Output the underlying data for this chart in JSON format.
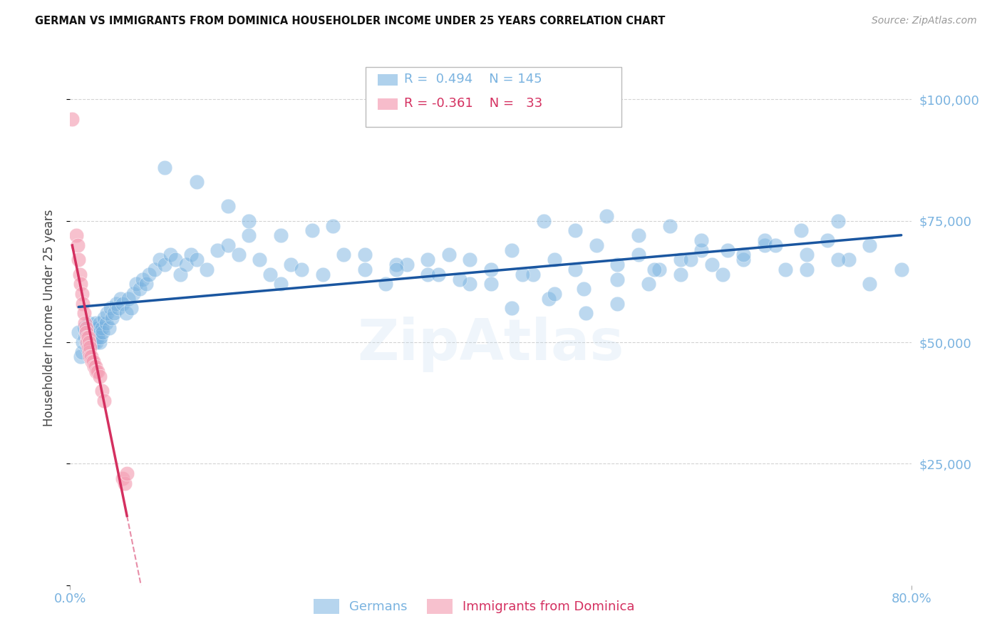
{
  "title": "GERMAN VS IMMIGRANTS FROM DOMINICA HOUSEHOLDER INCOME UNDER 25 YEARS CORRELATION CHART",
  "source": "Source: ZipAtlas.com",
  "ylabel": "Householder Income Under 25 years",
  "xlim": [
    0.0,
    0.8
  ],
  "ylim": [
    0,
    110000
  ],
  "yticks": [
    0,
    25000,
    50000,
    75000,
    100000
  ],
  "background_color": "#ffffff",
  "grid_color": "#c8c8c8",
  "blue_color": "#7ab3e0",
  "pink_color": "#f4a0b5",
  "line_blue": "#1a56a0",
  "line_pink": "#d43060",
  "legend_R_blue": "0.494",
  "legend_N_blue": "145",
  "legend_R_pink": "-0.361",
  "legend_N_pink": "33",
  "german_x": [
    0.008,
    0.01,
    0.011,
    0.012,
    0.013,
    0.014,
    0.015,
    0.015,
    0.016,
    0.017,
    0.017,
    0.018,
    0.018,
    0.019,
    0.019,
    0.02,
    0.02,
    0.021,
    0.021,
    0.022,
    0.022,
    0.023,
    0.023,
    0.024,
    0.024,
    0.025,
    0.025,
    0.026,
    0.026,
    0.027,
    0.028,
    0.028,
    0.029,
    0.03,
    0.031,
    0.032,
    0.034,
    0.035,
    0.037,
    0.038,
    0.04,
    0.042,
    0.044,
    0.046,
    0.048,
    0.05,
    0.053,
    0.055,
    0.058,
    0.06,
    0.063,
    0.066,
    0.069,
    0.072,
    0.075,
    0.08,
    0.085,
    0.09,
    0.095,
    0.1,
    0.105,
    0.11,
    0.115,
    0.12,
    0.13,
    0.14,
    0.15,
    0.16,
    0.17,
    0.18,
    0.19,
    0.2,
    0.21,
    0.22,
    0.24,
    0.26,
    0.28,
    0.3,
    0.32,
    0.34,
    0.36,
    0.38,
    0.4,
    0.42,
    0.44,
    0.46,
    0.48,
    0.5,
    0.52,
    0.54,
    0.56,
    0.58,
    0.6,
    0.62,
    0.64,
    0.66,
    0.68,
    0.7,
    0.72,
    0.74,
    0.76,
    0.45,
    0.48,
    0.51,
    0.54,
    0.57,
    0.6,
    0.28,
    0.31,
    0.35,
    0.38,
    0.42,
    0.455,
    0.488,
    0.52,
    0.555,
    0.59,
    0.625,
    0.66,
    0.695,
    0.73,
    0.09,
    0.12,
    0.15,
    0.17,
    0.2,
    0.23,
    0.25,
    0.31,
    0.34,
    0.37,
    0.4,
    0.43,
    0.46,
    0.49,
    0.52,
    0.55,
    0.58,
    0.61,
    0.64,
    0.67,
    0.7,
    0.73,
    0.76,
    0.79
  ],
  "german_y": [
    52000,
    47000,
    48000,
    50000,
    53000,
    51000,
    52000,
    50000,
    49000,
    52000,
    53000,
    51000,
    54000,
    50000,
    52000,
    51000,
    53000,
    52000,
    50000,
    51000,
    53000,
    52000,
    50000,
    54000,
    51000,
    52000,
    50000,
    53000,
    51000,
    52000,
    54000,
    50000,
    51000,
    53000,
    52000,
    55000,
    54000,
    56000,
    53000,
    57000,
    55000,
    56000,
    58000,
    57000,
    59000,
    58000,
    56000,
    59000,
    57000,
    60000,
    62000,
    61000,
    63000,
    62000,
    64000,
    65000,
    67000,
    66000,
    68000,
    67000,
    64000,
    66000,
    68000,
    67000,
    65000,
    69000,
    70000,
    68000,
    72000,
    67000,
    64000,
    62000,
    66000,
    65000,
    64000,
    68000,
    65000,
    62000,
    66000,
    64000,
    68000,
    67000,
    65000,
    69000,
    64000,
    67000,
    65000,
    70000,
    66000,
    68000,
    65000,
    67000,
    69000,
    64000,
    67000,
    70000,
    65000,
    68000,
    71000,
    67000,
    70000,
    75000,
    73000,
    76000,
    72000,
    74000,
    71000,
    68000,
    66000,
    64000,
    62000,
    57000,
    59000,
    61000,
    63000,
    65000,
    67000,
    69000,
    71000,
    73000,
    75000,
    86000,
    83000,
    78000,
    75000,
    72000,
    73000,
    74000,
    65000,
    67000,
    63000,
    62000,
    64000,
    60000,
    56000,
    58000,
    62000,
    64000,
    66000,
    68000,
    70000,
    65000,
    67000,
    62000,
    65000
  ],
  "dominica_x": [
    0.002,
    0.006,
    0.007,
    0.008,
    0.009,
    0.01,
    0.011,
    0.012,
    0.013,
    0.014,
    0.015,
    0.015,
    0.016,
    0.016,
    0.017,
    0.017,
    0.018,
    0.018,
    0.019,
    0.019,
    0.02,
    0.021,
    0.022,
    0.023,
    0.024,
    0.025,
    0.026,
    0.028,
    0.03,
    0.032,
    0.05,
    0.052,
    0.054
  ],
  "dominica_y": [
    96000,
    72000,
    70000,
    67000,
    64000,
    62000,
    60000,
    58000,
    56000,
    54000,
    53000,
    52000,
    51000,
    50000,
    51000,
    49000,
    50000,
    48000,
    49000,
    47000,
    47000,
    46000,
    46000,
    45000,
    45000,
    44000,
    44000,
    43000,
    40000,
    38000,
    22000,
    21000,
    23000
  ]
}
